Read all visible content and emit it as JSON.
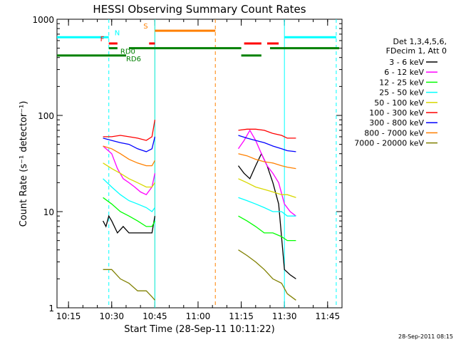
{
  "chart_data": {
    "type": "line",
    "title": "HESSI Observing Summary Count Rates",
    "xlabel": "Start Time (28-Sep-11 10:11:22)",
    "ylabel": "Count Rate (s⁻¹ detector⁻¹)",
    "y_scale": "log",
    "ylim": [
      1,
      1000
    ],
    "xlim": [
      "10:11",
      "11:50"
    ],
    "x_ticks": [
      "10:15",
      "10:30",
      "10:45",
      "11:00",
      "11:15",
      "11:30",
      "11:45"
    ],
    "y_ticks": [
      "1",
      "10",
      "100",
      "1000"
    ],
    "footer": "28-Sep-2011 08:15",
    "legend_header": [
      "Det 1,3,4,5,6,",
      "FDecim 1, Att 0"
    ],
    "legend_placement": "right",
    "annotations": [
      "N",
      "F",
      "RD0",
      "RD6",
      "S"
    ],
    "series": [
      {
        "name": "3 - 6 keV",
        "color": "#000000",
        "segments": [
          {
            "x": [
              "10:27",
              "10:28",
              "10:29",
              "10:30",
              "10:32",
              "10:34",
              "10:36",
              "10:38",
              "10:40",
              "10:42",
              "10:44",
              "10:45"
            ],
            "y": [
              8,
              7,
              9,
              8,
              6,
              7,
              6,
              6,
              6,
              6,
              6,
              9
            ]
          },
          {
            "x": [
              "11:14",
              "11:16",
              "11:18",
              "11:20",
              "11:22",
              "11:24",
              "11:26",
              "11:28",
              "11:30",
              "11:32",
              "11:34"
            ],
            "y": [
              30,
              25,
              22,
              30,
              40,
              30,
              20,
              12,
              2.5,
              2.2,
              2
            ]
          }
        ]
      },
      {
        "name": "6 - 12 keV",
        "color": "#ff00ff",
        "segments": [
          {
            "x": [
              "10:27",
              "10:30",
              "10:32",
              "10:34",
              "10:36",
              "10:38",
              "10:40",
              "10:42",
              "10:44",
              "10:45"
            ],
            "y": [
              48,
              40,
              28,
              22,
              20,
              18,
              16,
              15,
              18,
              25
            ]
          },
          {
            "x": [
              "11:14",
              "11:16",
              "11:18",
              "11:20",
              "11:22",
              "11:24",
              "11:26",
              "11:28",
              "11:30",
              "11:32",
              "11:34"
            ],
            "y": [
              45,
              55,
              70,
              55,
              40,
              30,
              25,
              20,
              12,
              10,
              9
            ]
          }
        ]
      },
      {
        "name": "12 - 25 keV",
        "color": "#00ff00",
        "segments": [
          {
            "x": [
              "10:27",
              "10:30",
              "10:33",
              "10:36",
              "10:39",
              "10:42",
              "10:44",
              "10:45"
            ],
            "y": [
              14,
              12,
              10,
              9,
              8,
              7,
              7,
              8
            ]
          },
          {
            "x": [
              "11:14",
              "11:17",
              "11:20",
              "11:23",
              "11:26",
              "11:29",
              "11:31",
              "11:34"
            ],
            "y": [
              9,
              8,
              7,
              6,
              6,
              5.5,
              5,
              5
            ]
          }
        ]
      },
      {
        "name": "25 - 50 keV",
        "color": "#00ffff",
        "segments": [
          {
            "x": [
              "10:27",
              "10:30",
              "10:33",
              "10:36",
              "10:39",
              "10:42",
              "10:44",
              "10:45"
            ],
            "y": [
              22,
              18,
              15,
              13,
              12,
              11,
              10,
              11
            ]
          },
          {
            "x": [
              "11:14",
              "11:17",
              "11:20",
              "11:23",
              "11:26",
              "11:29",
              "11:31",
              "11:34"
            ],
            "y": [
              14,
              13,
              12,
              11,
              10,
              10,
              9,
              9
            ]
          }
        ]
      },
      {
        "name": "50 - 100 keV",
        "color": "#d8d800",
        "segments": [
          {
            "x": [
              "10:27",
              "10:30",
              "10:33",
              "10:36",
              "10:39",
              "10:42",
              "10:44",
              "10:45"
            ],
            "y": [
              32,
              28,
              25,
              22,
              20,
              18,
              18,
              20
            ]
          },
          {
            "x": [
              "11:14",
              "11:17",
              "11:20",
              "11:23",
              "11:26",
              "11:29",
              "11:31",
              "11:34"
            ],
            "y": [
              22,
              20,
              18,
              17,
              16,
              15,
              15,
              14
            ]
          }
        ]
      },
      {
        "name": "100 - 300 keV",
        "color": "#ff0000",
        "segments": [
          {
            "x": [
              "10:27",
              "10:30",
              "10:33",
              "10:36",
              "10:39",
              "10:42",
              "10:44",
              "10:45"
            ],
            "y": [
              60,
              60,
              62,
              60,
              58,
              55,
              60,
              90
            ]
          },
          {
            "x": [
              "11:14",
              "11:17",
              "11:20",
              "11:23",
              "11:26",
              "11:29",
              "11:31",
              "11:34"
            ],
            "y": [
              70,
              72,
              72,
              70,
              65,
              62,
              58,
              58
            ]
          }
        ]
      },
      {
        "name": "300 - 800 keV",
        "color": "#0000ff",
        "segments": [
          {
            "x": [
              "10:27",
              "10:30",
              "10:33",
              "10:36",
              "10:39",
              "10:42",
              "10:44",
              "10:45"
            ],
            "y": [
              58,
              55,
              52,
              50,
              45,
              42,
              45,
              60
            ]
          },
          {
            "x": [
              "11:14",
              "11:17",
              "11:20",
              "11:23",
              "11:26",
              "11:29",
              "11:31",
              "11:34"
            ],
            "y": [
              62,
              58,
              55,
              52,
              48,
              45,
              43,
              42
            ]
          }
        ]
      },
      {
        "name": "800 - 7000 keV",
        "color": "#ff8000",
        "segments": [
          {
            "x": [
              "10:27",
              "10:30",
              "10:33",
              "10:36",
              "10:39",
              "10:42",
              "10:44",
              "10:45"
            ],
            "y": [
              48,
              45,
              40,
              35,
              32,
              30,
              30,
              34
            ]
          },
          {
            "x": [
              "11:14",
              "11:17",
              "11:20",
              "11:23",
              "11:26",
              "11:29",
              "11:31",
              "11:34"
            ],
            "y": [
              40,
              38,
              35,
              33,
              32,
              30,
              29,
              28
            ]
          }
        ]
      },
      {
        "name": "7000 - 20000 keV",
        "color": "#808000",
        "segments": [
          {
            "x": [
              "10:27",
              "10:30",
              "10:33",
              "10:36",
              "10:39",
              "10:42",
              "10:44",
              "10:45"
            ],
            "y": [
              2.5,
              2.5,
              2,
              1.8,
              1.5,
              1.5,
              1.3,
              1.2
            ]
          },
          {
            "x": [
              "11:14",
              "11:17",
              "11:20",
              "11:23",
              "11:26",
              "11:29",
              "11:31",
              "11:34"
            ],
            "y": [
              4,
              3.5,
              3,
              2.5,
              2,
              1.8,
              1.4,
              1.2
            ]
          }
        ]
      }
    ],
    "flag_bars": [
      {
        "label": "N",
        "color": "#00ffff",
        "y": 650,
        "spans": [
          [
            "10:11",
            "10:29"
          ],
          [
            "11:30",
            "11:48"
          ]
        ]
      },
      {
        "label": "F",
        "color": "#ff0000",
        "y": 560,
        "spans": [
          [
            "10:29",
            "10:32"
          ],
          [
            "10:43",
            "10:45"
          ],
          [
            "11:16",
            "11:22"
          ],
          [
            "11:24",
            "11:28"
          ]
        ]
      },
      {
        "label": "RD0",
        "color": "#008000",
        "y": 500,
        "spans": [
          [
            "10:29",
            "10:32"
          ],
          [
            "10:36",
            "10:45"
          ],
          [
            "10:45",
            "11:15"
          ],
          [
            "11:25",
            "11:49"
          ]
        ]
      },
      {
        "label": "RD6",
        "color": "#008000",
        "y": 420,
        "spans": [
          [
            "10:11",
            "10:35"
          ],
          [
            "11:15",
            "11:22"
          ]
        ]
      },
      {
        "label": "S",
        "color": "#ff8000",
        "y": 760,
        "spans": [
          [
            "10:45",
            "11:06"
          ]
        ]
      }
    ],
    "vlines": [
      {
        "x": "10:29",
        "color": "#00ffff",
        "style": "dashed"
      },
      {
        "x": "10:45",
        "color": "#ff8000",
        "style": "solid"
      },
      {
        "x": "10:45",
        "color": "#00ffff",
        "style": "solid"
      },
      {
        "x": "11:06",
        "color": "#ff8000",
        "style": "dashed"
      },
      {
        "x": "11:30",
        "color": "#00ffff",
        "style": "solid"
      },
      {
        "x": "11:48",
        "color": "#00ffff",
        "style": "dashed"
      }
    ]
  }
}
